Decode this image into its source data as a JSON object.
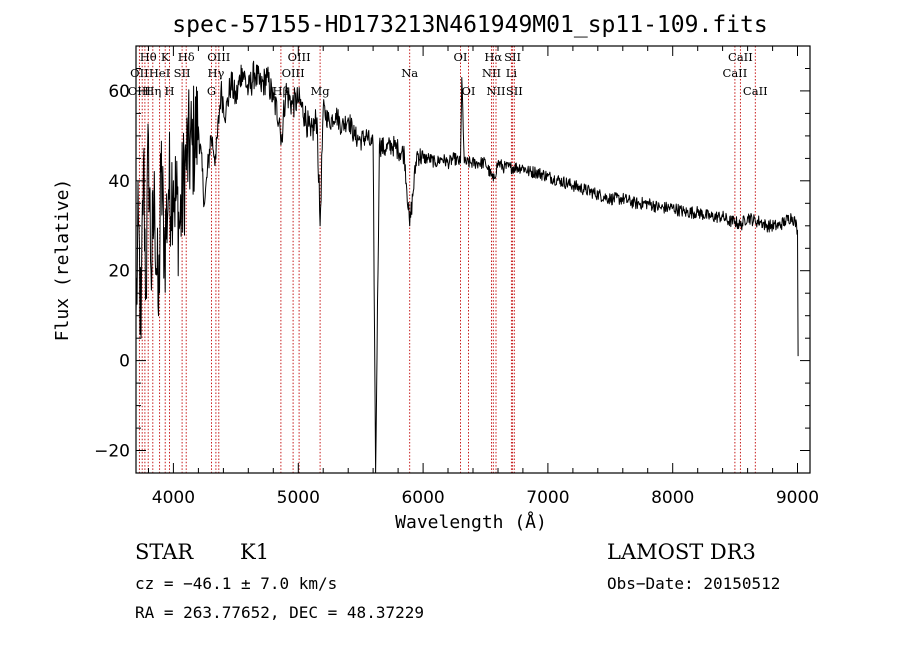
{
  "chart_data": {
    "type": "line",
    "title": "spec-57155-HD173213N461949M01_sp11-109.fits",
    "xlabel": "Wavelength (Å)",
    "ylabel": "Flux (relative)",
    "xlim": [
      3700,
      9100
    ],
    "ylim": [
      -25,
      70
    ],
    "x_ticks": [
      4000,
      5000,
      6000,
      7000,
      8000,
      9000
    ],
    "y_ticks": [
      -20,
      0,
      20,
      40,
      60
    ],
    "series": [
      {
        "name": "spectrum",
        "x": [
          3700,
          3720,
          3740,
          3760,
          3780,
          3800,
          3820,
          3850,
          3880,
          3900,
          3930,
          3960,
          4000,
          4050,
          4100,
          4150,
          4200,
          4250,
          4300,
          4340,
          4380,
          4420,
          4460,
          4500,
          4550,
          4600,
          4650,
          4700,
          4750,
          4800,
          4850,
          4861,
          4900,
          4950,
          5000,
          5050,
          5100,
          5150,
          5175,
          5200,
          5250,
          5300,
          5350,
          5400,
          5450,
          5500,
          5550,
          5580,
          5600,
          5620,
          5650,
          5700,
          5750,
          5800,
          5850,
          5893,
          5950,
          6000,
          6050,
          6100,
          6150,
          6200,
          6250,
          6300,
          6310,
          6330,
          6380,
          6450,
          6500,
          6563,
          6600,
          6650,
          6700,
          6750,
          6800,
          6850,
          6900,
          7000,
          7100,
          7200,
          7300,
          7400,
          7500,
          7600,
          7700,
          7800,
          7900,
          8000,
          8100,
          8200,
          8300,
          8400,
          8450,
          8500,
          8542,
          8600,
          8662,
          8700,
          8750,
          8800,
          8850,
          8900,
          8950,
          8980,
          9000,
          9005
        ],
        "y": [
          10,
          30,
          5,
          45,
          15,
          50,
          20,
          35,
          10,
          42,
          25,
          38,
          40,
          30,
          45,
          48,
          52,
          35,
          50,
          45,
          60,
          55,
          62,
          58,
          65,
          60,
          64,
          61,
          63,
          58,
          54,
          48,
          60,
          57,
          58,
          55,
          50,
          54,
          30,
          56,
          53,
          55,
          52,
          54,
          50,
          49,
          50,
          48,
          48,
          -25,
          48,
          47,
          48,
          47,
          46,
          30,
          46,
          45,
          45,
          44,
          45,
          44,
          45,
          44,
          63,
          44,
          44,
          44,
          44,
          40,
          44,
          43,
          43,
          43,
          43,
          42,
          42,
          41,
          40,
          39,
          38,
          37,
          36,
          36,
          35,
          35,
          34,
          34,
          33,
          33,
          32,
          32,
          31,
          31,
          30,
          32,
          31,
          31,
          30,
          30,
          30,
          31,
          32,
          31,
          29,
          1
        ]
      }
    ],
    "spectral_lines": [
      {
        "label": "Hθ",
        "wl": 3798,
        "row": 1
      },
      {
        "label": "OII",
        "wl": 3727,
        "row": 2
      },
      {
        "label": "OIII",
        "wl": 3727,
        "row": 3
      },
      {
        "label": "K",
        "wl": 3934,
        "row": 1
      },
      {
        "label": "HeI",
        "wl": 3889,
        "row": 2
      },
      {
        "label": "Hη",
        "wl": 3835,
        "row": 3
      },
      {
        "label": "SII",
        "wl": 4069,
        "row": 2
      },
      {
        "label": "H",
        "wl": 3968,
        "row": 3
      },
      {
        "label": "Hδ",
        "wl": 4102,
        "row": 1
      },
      {
        "label": "OIII",
        "wl": 4363,
        "row": 1
      },
      {
        "label": "Hγ",
        "wl": 4340,
        "row": 2
      },
      {
        "label": "G",
        "wl": 4305,
        "row": 3
      },
      {
        "label": "OIII",
        "wl": 5007,
        "row": 1
      },
      {
        "label": "OIII",
        "wl": 4959,
        "row": 2
      },
      {
        "label": "Hβ",
        "wl": 4861,
        "row": 3
      },
      {
        "label": "Mg",
        "wl": 5175,
        "row": 3
      },
      {
        "label": "Na",
        "wl": 5893,
        "row": 2
      },
      {
        "label": "OI",
        "wl": 6300,
        "row": 1
      },
      {
        "label": "OI",
        "wl": 6364,
        "row": 3
      },
      {
        "label": "Hα",
        "wl": 6563,
        "row": 1
      },
      {
        "label": "NII",
        "wl": 6548,
        "row": 2
      },
      {
        "label": "NII",
        "wl": 6584,
        "row": 3
      },
      {
        "label": "SII",
        "wl": 6717,
        "row": 1
      },
      {
        "label": "Li",
        "wl": 6708,
        "row": 2
      },
      {
        "label": "SII",
        "wl": 6731,
        "row": 3
      },
      {
        "label": "CaII",
        "wl": 8542,
        "row": 1
      },
      {
        "label": "CaII",
        "wl": 8498,
        "row": 2
      },
      {
        "label": "CaII",
        "wl": 8662,
        "row": 3
      }
    ],
    "line_markers_wl": [
      3727,
      3750,
      3771,
      3798,
      3835,
      3889,
      3934,
      3968,
      4069,
      4102,
      4305,
      4340,
      4363,
      4861,
      4959,
      5007,
      5175,
      5893,
      6300,
      6364,
      6548,
      6563,
      6584,
      6708,
      6717,
      6731,
      8498,
      8542,
      8662
    ]
  },
  "info": {
    "class_label": "STAR",
    "subclass": "K1",
    "survey": "LAMOST DR3",
    "cz_text": "cz = −46.1 ± 7.0 km/s",
    "obs_date": "Obs−Date: 20150512",
    "coords": "RA = 263.77652, DEC =  48.37229"
  }
}
